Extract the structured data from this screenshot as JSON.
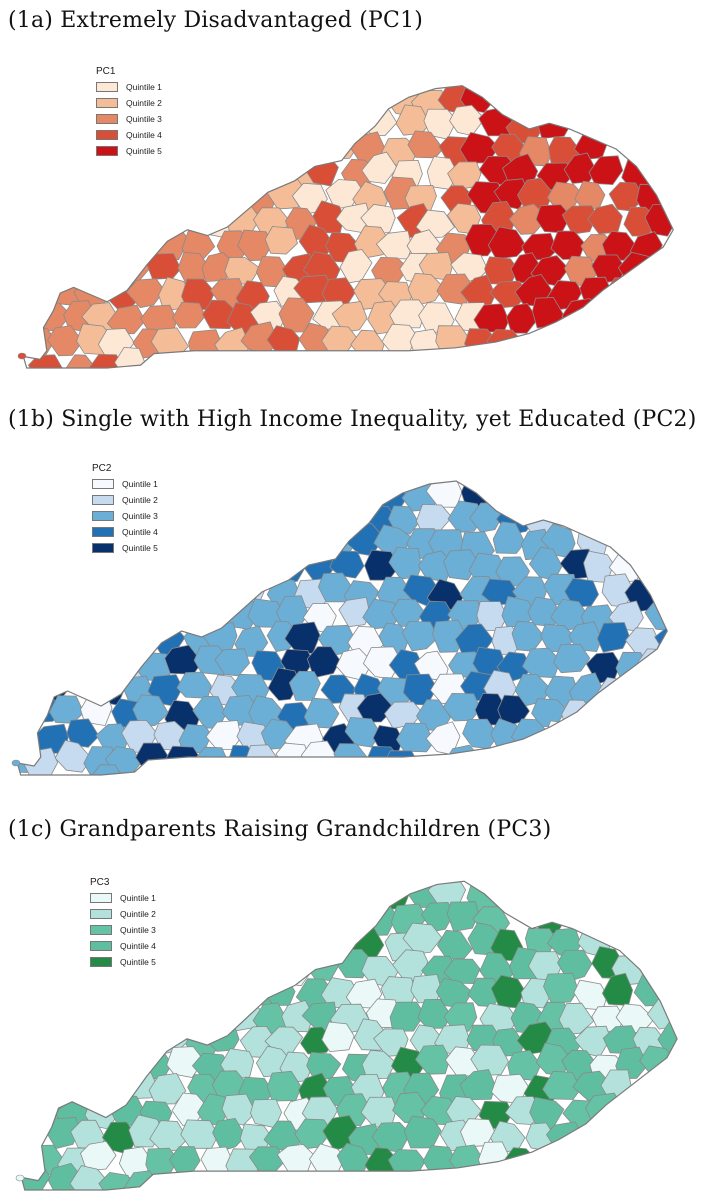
{
  "panels": [
    {
      "title": "(1a) Extremely Disadvantaged (PC1)",
      "legend_title": "PC1",
      "classes": [
        "Quintile 1",
        "Quintile 2",
        "Quintile 3",
        "Quintile 4",
        "Quintile 5"
      ],
      "colors": [
        "#fde8d6",
        "#f4bd98",
        "#e48866",
        "#d84e37",
        "#cb1217"
      ]
    },
    {
      "title": "(1b) Single with High Income Inequality, yet Educated (PC2)",
      "legend_title": "PC2",
      "classes": [
        "Quintile 1",
        "Quintile 2",
        "Quintile 3",
        "Quintile 4",
        "Quintile 5"
      ],
      "colors": [
        "#f6f9fd",
        "#c6dbef",
        "#6baed6",
        "#2271b5",
        "#08306b"
      ]
    },
    {
      "title": "(1c) Grandparents Raising Grandchildren (PC3)",
      "legend_title": "PC3",
      "classes": [
        "Quintile 1",
        "Quintile 2",
        "Quintile 3",
        "Quintile 4",
        "Quintile 5"
      ],
      "colors": [
        "#ebf8f8",
        "#b3e2dc",
        "#66c2a4",
        "#5fbea0",
        "#238b45"
      ]
    }
  ]
}
